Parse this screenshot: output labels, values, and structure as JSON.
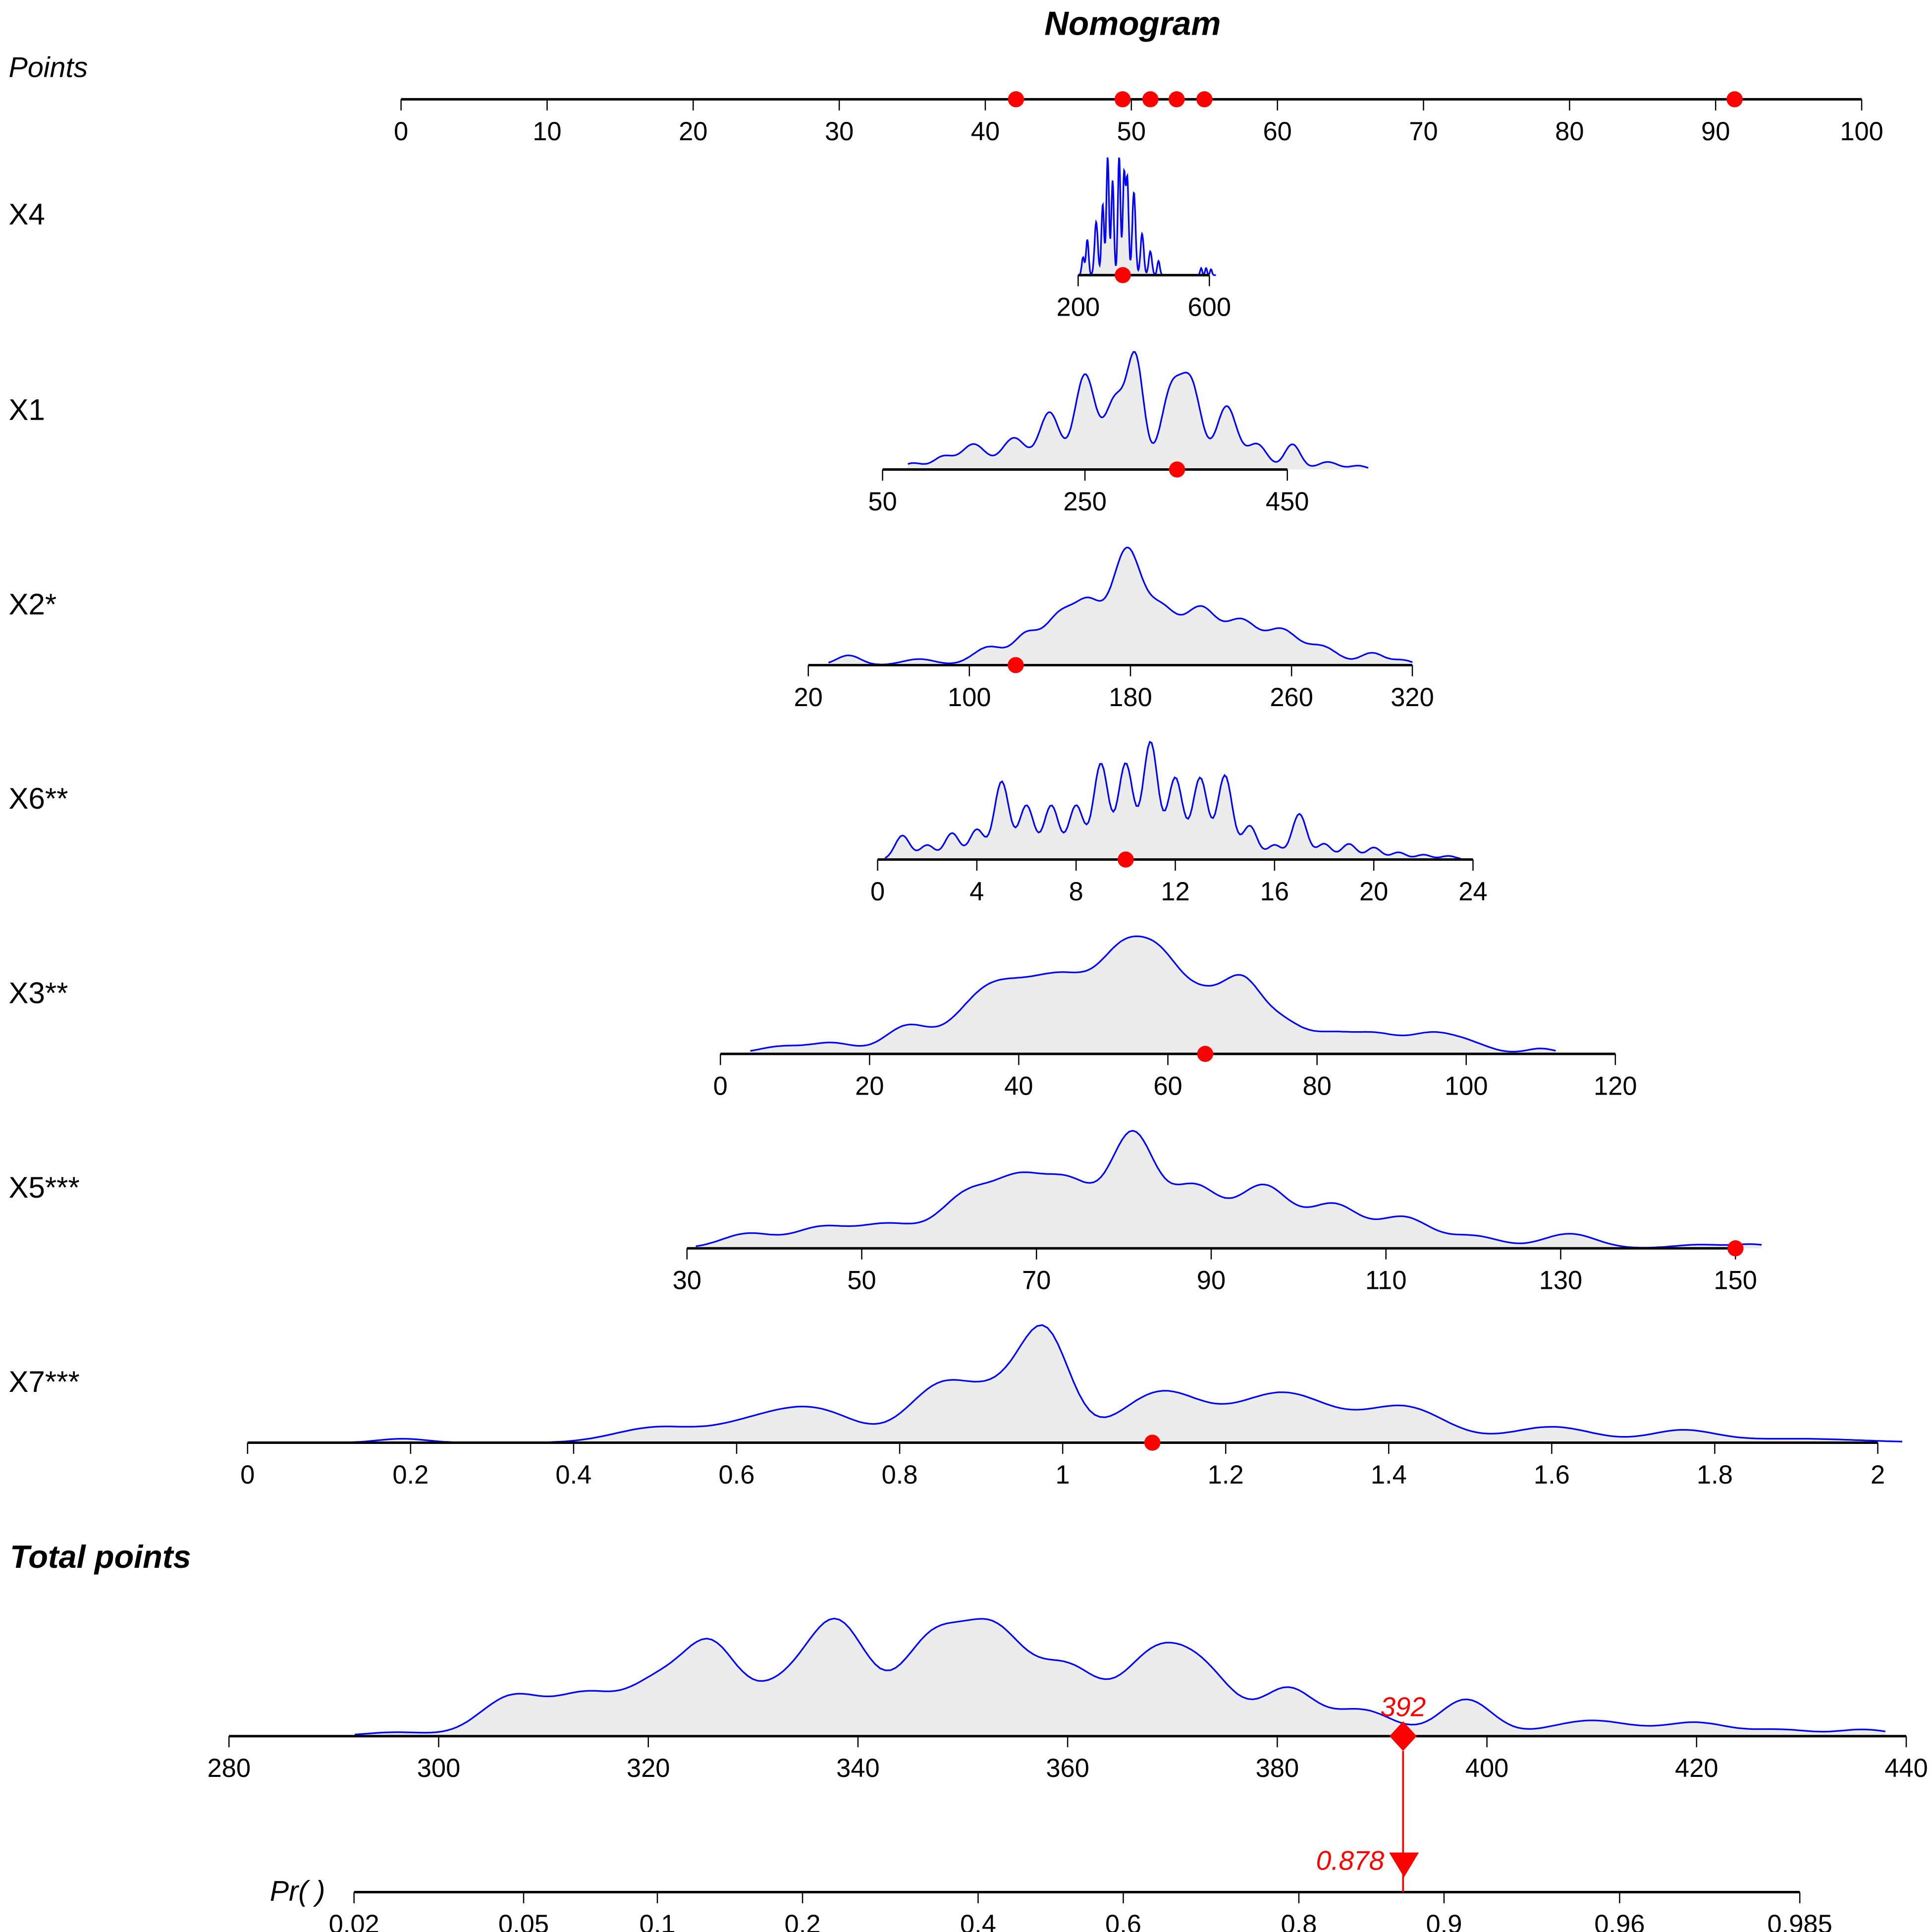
{
  "chart_data": {
    "type": "nomogram",
    "title": "Nomogram",
    "points_axis": {
      "label": "Points",
      "min": 0,
      "max": 100,
      "ticks": [
        0,
        10,
        20,
        30,
        40,
        50,
        60,
        70,
        80,
        90,
        100
      ],
      "marked_points": [
        42.1,
        49.4,
        51.3,
        53.1,
        55.0,
        91.3
      ]
    },
    "variables": [
      {
        "label": "X4",
        "min": 200,
        "max": 600,
        "ticks": [
          200,
          600
        ],
        "value": 336,
        "density": [
          [
            215,
            0.15,
            4
          ],
          [
            228,
            0.3,
            4
          ],
          [
            255,
            0.45,
            5
          ],
          [
            275,
            0.6,
            4
          ],
          [
            290,
            1,
            4
          ],
          [
            305,
            0.8,
            4
          ],
          [
            325,
            1,
            4
          ],
          [
            340,
            0.85,
            4
          ],
          [
            350,
            0.8,
            4
          ],
          [
            370,
            0.7,
            5
          ],
          [
            395,
            0.35,
            5
          ],
          [
            420,
            0.2,
            5
          ],
          [
            445,
            0.12,
            4
          ],
          [
            575,
            0.06,
            3
          ],
          [
            590,
            0.06,
            3
          ],
          [
            605,
            0.05,
            3
          ]
        ]
      },
      {
        "label": "X1",
        "min": 50,
        "max": 450,
        "ticks": [
          50,
          250,
          450
        ],
        "value": 341,
        "density": [
          [
            80,
            0.05,
            10
          ],
          [
            110,
            0.1,
            10
          ],
          [
            140,
            0.2,
            12
          ],
          [
            180,
            0.25,
            12
          ],
          [
            215,
            0.45,
            10
          ],
          [
            250,
            0.75,
            10
          ],
          [
            280,
            0.55,
            10
          ],
          [
            300,
            0.85,
            8
          ],
          [
            335,
            0.6,
            10
          ],
          [
            355,
            0.65,
            10
          ],
          [
            390,
            0.5,
            10
          ],
          [
            420,
            0.2,
            10
          ],
          [
            455,
            0.2,
            8
          ],
          [
            490,
            0.06,
            10
          ],
          [
            520,
            0.03,
            8
          ]
        ]
      },
      {
        "label": "X2*",
        "min": 20,
        "max": 320,
        "ticks": [
          20,
          100,
          180,
          260,
          320
        ],
        "value": 123,
        "density": [
          [
            40,
            0.08,
            6
          ],
          [
            75,
            0.05,
            8
          ],
          [
            110,
            0.15,
            8
          ],
          [
            128,
            0.22,
            6
          ],
          [
            145,
            0.4,
            8
          ],
          [
            160,
            0.45,
            7
          ],
          [
            178,
            0.9,
            7
          ],
          [
            195,
            0.45,
            8
          ],
          [
            215,
            0.45,
            8
          ],
          [
            235,
            0.35,
            8
          ],
          [
            255,
            0.28,
            8
          ],
          [
            275,
            0.15,
            8
          ],
          [
            300,
            0.1,
            6
          ],
          [
            315,
            0.04,
            5
          ]
        ]
      },
      {
        "label": "X6**",
        "min": 0,
        "max": 24,
        "ticks": [
          0,
          4,
          8,
          12,
          16,
          20,
          24
        ],
        "value": 10,
        "density": [
          [
            1,
            0.2,
            0.3
          ],
          [
            2,
            0.12,
            0.3
          ],
          [
            3,
            0.22,
            0.3
          ],
          [
            4,
            0.25,
            0.3
          ],
          [
            5,
            0.65,
            0.3
          ],
          [
            6,
            0.45,
            0.3
          ],
          [
            7,
            0.45,
            0.3
          ],
          [
            8,
            0.45,
            0.3
          ],
          [
            9,
            0.8,
            0.3
          ],
          [
            10,
            0.8,
            0.3
          ],
          [
            11,
            0.98,
            0.3
          ],
          [
            12,
            0.68,
            0.3
          ],
          [
            13,
            0.68,
            0.3
          ],
          [
            14,
            0.7,
            0.3
          ],
          [
            15,
            0.28,
            0.3
          ],
          [
            16,
            0.12,
            0.3
          ],
          [
            17,
            0.38,
            0.3
          ],
          [
            18,
            0.13,
            0.3
          ],
          [
            19,
            0.13,
            0.3
          ],
          [
            20,
            0.1,
            0.3
          ],
          [
            21,
            0.06,
            0.3
          ],
          [
            22,
            0.04,
            0.3
          ],
          [
            23,
            0.03,
            0.3
          ]
        ]
      },
      {
        "label": "X3**",
        "min": 0,
        "max": 120,
        "ticks": [
          0,
          20,
          40,
          60,
          80,
          100,
          120
        ],
        "value": 65,
        "density": [
          [
            8,
            0.08,
            3
          ],
          [
            15,
            0.12,
            3
          ],
          [
            25,
            0.3,
            3
          ],
          [
            35,
            0.5,
            4
          ],
          [
            42,
            0.6,
            5
          ],
          [
            48,
            0.5,
            4
          ],
          [
            54,
            0.85,
            3
          ],
          [
            59,
            0.9,
            3
          ],
          [
            65,
            0.55,
            3
          ],
          [
            70,
            0.65,
            2.5
          ],
          [
            75,
            0.35,
            3
          ],
          [
            82,
            0.2,
            3
          ],
          [
            88,
            0.2,
            3
          ],
          [
            95,
            0.2,
            3
          ],
          [
            100,
            0.12,
            3
          ],
          [
            110,
            0.06,
            2
          ]
        ]
      },
      {
        "label": "X5***",
        "min": 30,
        "max": 150,
        "ticks": [
          30,
          50,
          70,
          90,
          110,
          130,
          150
        ],
        "value": 150,
        "density": [
          [
            37,
            0.12,
            3
          ],
          [
            45,
            0.15,
            3
          ],
          [
            53,
            0.2,
            4
          ],
          [
            62,
            0.4,
            3
          ],
          [
            68,
            0.5,
            3
          ],
          [
            74,
            0.5,
            3
          ],
          [
            81,
            0.9,
            2.5
          ],
          [
            88,
            0.5,
            3
          ],
          [
            96,
            0.5,
            3
          ],
          [
            104,
            0.35,
            3
          ],
          [
            112,
            0.25,
            3
          ],
          [
            120,
            0.1,
            3
          ],
          [
            131,
            0.12,
            3
          ],
          [
            146,
            0.03,
            3
          ],
          [
            152,
            0.03,
            2
          ]
        ]
      },
      {
        "label": "X7***",
        "min": 0,
        "max": 2,
        "ticks": [
          0,
          0.2,
          0.4,
          0.6,
          0.8,
          1,
          1.2,
          1.4,
          1.6,
          1.8,
          2
        ],
        "value": 1.11,
        "density": [
          [
            0.19,
            0.04,
            0.03
          ],
          [
            0.5,
            0.15,
            0.05
          ],
          [
            0.62,
            0.18,
            0.05
          ],
          [
            0.7,
            0.3,
            0.05
          ],
          [
            0.85,
            0.55,
            0.04
          ],
          [
            0.93,
            0.45,
            0.04
          ],
          [
            0.98,
            0.95,
            0.03
          ],
          [
            1.12,
            0.5,
            0.05
          ],
          [
            1.27,
            0.5,
            0.06
          ],
          [
            1.42,
            0.35,
            0.05
          ],
          [
            1.6,
            0.16,
            0.05
          ],
          [
            1.76,
            0.12,
            0.04
          ],
          [
            1.9,
            0.04,
            0.08
          ]
        ]
      }
    ],
    "total_points": {
      "label": "Total points",
      "min": 280,
      "max": 440,
      "ticks": [
        280,
        300,
        320,
        340,
        360,
        380,
        400,
        420,
        440
      ],
      "value": 392,
      "value_label": "392",
      "density": [
        [
          296,
          0.03,
          3
        ],
        [
          307,
          0.3,
          3
        ],
        [
          314,
          0.3,
          3
        ],
        [
          321,
          0.4,
          3
        ],
        [
          326,
          0.6,
          2.5
        ],
        [
          332,
          0.3,
          3
        ],
        [
          338,
          0.85,
          3
        ],
        [
          347,
          0.7,
          3
        ],
        [
          353,
          0.75,
          3
        ],
        [
          360,
          0.5,
          3
        ],
        [
          368,
          0.55,
          3
        ],
        [
          373,
          0.45,
          3
        ],
        [
          381,
          0.35,
          2.5
        ],
        [
          388,
          0.2,
          3
        ],
        [
          398,
          0.28,
          2.5
        ],
        [
          410,
          0.12,
          4
        ],
        [
          420,
          0.1,
          3
        ],
        [
          428,
          0.05,
          3
        ],
        [
          436,
          0.05,
          2.5
        ]
      ]
    },
    "probability": {
      "label": "Pr( )",
      "ticks": [
        0.02,
        0.05,
        0.1,
        0.2,
        0.4,
        0.6,
        0.8,
        0.9,
        0.96,
        0.985
      ],
      "scale": "logit",
      "value": 0.878,
      "value_label": "0.878"
    },
    "colors": {
      "density_line": "#0000ff",
      "density_fill": "#ececec",
      "marker": "#ff0000",
      "axis": "#000000"
    }
  }
}
